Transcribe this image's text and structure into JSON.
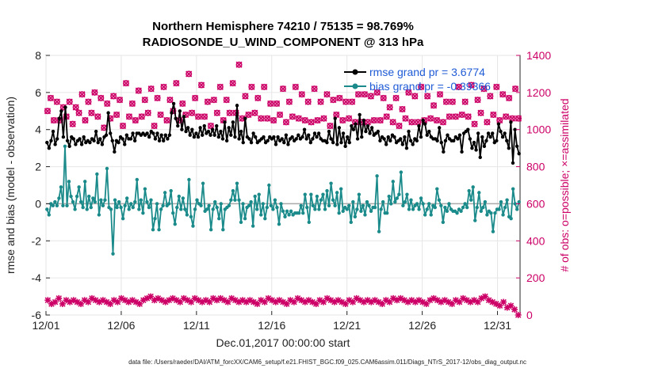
{
  "chart_data": {
    "type": "line",
    "title_line1": "Northern Hemisphere 74210 / 75135 = 98.769%",
    "title_line2": "RADIOSONDE_U_WIND_COMPONENT @ 313 hPa",
    "xlabel": "Dec.01,2017 00:00:00 start",
    "ylabel_left": "rmse and bias (model - observation)",
    "ylabel_right": "# of obs: o=possible; ×=assimilated",
    "footnote": "data file: /Users/raeder/DAI/ATM_forcXX/CAM6_setup/f.e21.FHIST_BGC.f09_025.CAM6assim.011/Diags_NTrS_2017-12/obs_diag_output.nc",
    "xlim": [
      0,
      31.5
    ],
    "xticks": [
      0,
      5,
      10,
      15,
      20,
      25,
      30
    ],
    "xtick_labels": [
      "12/01",
      "12/06",
      "12/11",
      "12/16",
      "12/21",
      "12/26",
      "12/31"
    ],
    "ylim_left": [
      -6,
      8
    ],
    "yticks_left": [
      "-6",
      "-4",
      "-2",
      "0",
      "2",
      "4",
      "6",
      "8"
    ],
    "ylim_right": [
      0,
      1400
    ],
    "yticks_right": [
      "0",
      "200",
      "400",
      "600",
      "800",
      "1000",
      "1200",
      "1400"
    ],
    "legend": [
      {
        "name": "rmse grand pr = 3.6774",
        "color": "#000000"
      },
      {
        "name": "bias grand pr = -0.39366",
        "color": "#1a8a8a"
      }
    ],
    "colors": {
      "rmse": "#000000",
      "bias": "#1a8a8a",
      "obs": "#cc0066",
      "zero_line": "#aaaaaa"
    },
    "series_rmse": [
      3.3,
      3.0,
      3.4,
      3.9,
      3.2,
      3.5,
      4.6,
      5.0,
      3.6,
      5.2,
      3.4,
      3.1,
      3.6,
      3.5,
      3.2,
      3.4,
      3.5,
      3.2,
      3.6,
      3.3,
      3.4,
      3.3,
      3.5,
      3.4,
      3.9,
      3.3,
      3.5,
      3.2,
      3.6,
      3.7,
      4.9,
      3.8,
      3.4,
      2.8,
      3.4,
      3.3,
      3.6,
      3.5,
      3.2,
      3.7,
      3.5,
      3.5,
      3.8,
      3.4,
      3.8,
      3.8,
      3.7,
      3.8,
      3.7,
      3.8,
      3.6,
      3.9,
      3.8,
      3.5,
      3.8,
      3.4,
      3.7,
      3.4,
      3.7,
      3.5,
      3.7,
      4.9,
      5.4,
      4.6,
      4.2,
      5.0,
      4.0,
      4.7,
      3.9,
      4.1,
      3.7,
      4.0,
      3.6,
      3.8,
      3.6,
      4.1,
      3.7,
      4.2,
      3.8,
      3.9,
      3.7,
      4.0,
      3.7,
      4.2,
      3.6,
      3.9,
      3.5,
      4.4,
      3.4,
      4.1,
      3.7,
      4.4,
      3.6,
      5.3,
      3.5,
      3.9,
      3.3,
      4.6,
      3.6,
      3.5,
      3.3,
      3.8,
      3.6,
      3.3,
      3.4,
      3.5,
      3.6,
      3.3,
      3.4,
      3.6,
      3.5,
      3.6,
      3.2,
      3.6,
      3.4,
      3.5,
      3.3,
      3.7,
      3.2,
      3.5,
      3.6,
      3.4,
      3.5,
      3.7,
      3.5,
      3.6,
      4.0,
      3.5,
      3.7,
      3.3,
      3.5,
      3.8,
      3.6,
      3.8,
      3.5,
      3.4,
      3.4,
      3.3,
      3.9,
      3.5,
      3.3,
      4.6,
      3.2,
      4.1,
      3.3,
      3.8,
      3.1,
      3.6,
      3.3,
      4.2,
      4.0,
      4.3,
      3.5,
      4.8,
      3.6,
      4.5,
      3.9,
      4.2,
      3.8,
      4.1,
      3.7,
      3.8,
      3.9,
      3.4,
      3.6,
      3.5,
      3.2,
      3.6,
      3.4,
      3.7,
      3.6,
      3.3,
      3.4,
      3.5,
      3.2,
      3.6,
      3.0,
      3.9,
      3.4,
      3.2,
      3.5,
      3.4,
      4.2,
      3.6,
      4.5,
      4.3,
      3.7,
      3.9,
      3.6,
      3.5,
      3.5,
      3.4,
      4.1,
      3.3,
      2.8,
      3.4,
      3.7,
      3.5,
      3.4,
      3.4,
      3.6,
      3.5,
      3.7,
      2.8,
      3.8,
      3.9,
      4.0,
      3.5,
      3.0,
      3.3,
      2.9,
      3.8,
      2.5,
      3.6,
      3.1,
      3.4,
      3.8,
      3.6,
      3.8,
      3.3,
      3.4,
      4.3,
      3.9,
      3.6,
      3.8,
      3.4,
      3.0,
      4.4,
      2.2,
      4.0,
      3.1,
      2.7
    ],
    "series_bias": [
      -0.3,
      -0.6,
      0.0,
      -0.1,
      0.1,
      -0.1,
      0.3,
      0.9,
      -0.1,
      3.1,
      -0.1,
      1.2,
      0.4,
      0.1,
      -0.3,
      0.4,
      0.9,
      0.1,
      -0.2,
      1.2,
      -0.3,
      0.4,
      -0.2,
      0.3,
      0.1,
      1.6,
      -0.6,
      0.2,
      -0.1,
      0.2,
      1.9,
      -0.2,
      -0.3,
      -2.7,
      0.2,
      -0.2,
      0.1,
      -0.2,
      -0.8,
      -0.1,
      0.3,
      -0.3,
      0.0,
      -0.2,
      0.1,
      1.3,
      -0.3,
      0.2,
      -0.5,
      0.8,
      0.1,
      -0.2,
      0.2,
      -1.4,
      -0.8,
      0.0,
      -1.4,
      -0.3,
      -0.1,
      0.6,
      -0.1,
      0.0,
      0.7,
      -0.5,
      -1.1,
      -0.2,
      0.4,
      -0.3,
      0.3,
      -0.3,
      -0.6,
      1.3,
      -0.7,
      -1.2,
      -0.3,
      0.2,
      0.0,
      -0.1,
      1.1,
      -0.4,
      -0.3,
      -0.1,
      -1.4,
      -0.3,
      0.1,
      -0.2,
      -0.8,
      0.0,
      -1.4,
      -0.3,
      -0.2,
      -0.1,
      0.2,
      0.7,
      0.2,
      1.1,
      0.2,
      -1.0,
      0.0,
      -0.8,
      -0.2,
      -0.1,
      0.1,
      -1.2,
      0.4,
      -0.3,
      0.5,
      -0.6,
      0.0,
      -0.8,
      -0.2,
      1.0,
      -0.1,
      -0.3,
      0.2,
      -0.2,
      -1.1,
      0.0,
      -0.4,
      -0.7,
      -0.4,
      -0.6,
      -0.4,
      -0.6,
      -0.5,
      -0.5,
      -0.5,
      -0.1,
      -0.5,
      0.5,
      -0.2,
      -1.0,
      0.5,
      -0.1,
      -0.3,
      0.4,
      -0.3,
      0.2,
      0.5,
      -0.3,
      0.7,
      -0.1,
      1.1,
      0.2,
      -0.1,
      0.6,
      -0.5,
      0.8,
      -0.4,
      -0.2,
      -0.3,
      -0.1,
      -1.0,
      0.1,
      -0.7,
      -0.3,
      0.5,
      -0.4,
      -0.1,
      -0.6,
      0.1,
      -0.1,
      -0.4,
      -0.2,
      -0.2,
      1.5,
      -1.5,
      -0.3,
      0.1,
      -0.5,
      -0.5,
      0.4,
      0.0,
      1.2,
      0.1,
      0.3,
      0.5,
      1.7,
      -0.1,
      0.1,
      0.5,
      -0.3,
      0.2,
      -0.3,
      -0.1,
      0.0,
      -0.3,
      0.3,
      0.0,
      -0.6,
      -0.3,
      0.0,
      -0.6,
      -0.1,
      -0.2,
      0.8,
      0.2,
      -0.1,
      -1.0,
      -0.2,
      -0.4,
      0.0,
      -0.3,
      -0.4,
      -0.4,
      -0.5,
      -0.3,
      -0.4,
      -0.2,
      0.0,
      -0.2,
      0.7,
      0.2,
      0.9,
      -0.9,
      -0.2,
      0.6,
      -0.4,
      -0.2,
      0.1,
      -0.6,
      -0.4,
      -0.5,
      -1.5,
      -0.5,
      -0.3,
      -0.3,
      0.1,
      -0.6,
      -0.2,
      0.2,
      -0.7,
      -0.8,
      0.8,
      0.0,
      -0.3,
      0.1
    ],
    "obs_possible": [
      1100,
      1170,
      1050,
      1150,
      1050,
      1120,
      1070,
      1150,
      1030,
      1120,
      1090,
      1190,
      1050,
      1150,
      1090,
      1200,
      1070,
      1170,
      1010,
      1140,
      1060,
      1180,
      1080,
      1160,
      1020,
      1250,
      1070,
      1140,
      1050,
      1210,
      1070,
      1160,
      1090,
      1220,
      1020,
      1170,
      1080,
      1230,
      1050,
      1160,
      1100,
      1250,
      1050,
      1140,
      1080,
      1300,
      1090,
      1170,
      1070,
      1240,
      1070,
      1150,
      1020,
      1160,
      1090,
      1230,
      1050,
      1160,
      1090,
      1250,
      1090,
      1350,
      1060,
      1180,
      1080,
      1230,
      1090,
      1170,
      1060,
      1230,
      1060,
      1140,
      1050,
      1140,
      1080,
      1220,
      1040,
      1150,
      1070,
      1230,
      1060,
      1190,
      1050,
      1150,
      1040,
      1220,
      1050,
      1150,
      1060,
      1190,
      1020,
      1160,
      1080,
      1170,
      1050,
      1150,
      1060,
      1150,
      1040,
      1190,
      1040,
      1190,
      1040,
      1180,
      1050,
      1200,
      1050,
      1170,
      1070,
      1120,
      1040,
      1170,
      1020,
      1110,
      1060,
      1200,
      1040,
      1180,
      1040,
      1230,
      1050,
      1180,
      1060,
      1130,
      1050,
      1190,
      1040,
      1150,
      1070,
      1150,
      1070,
      1230,
      1080,
      1150,
      1070,
      1240,
      1030,
      1160,
      1090,
      1220,
      1040,
      1180,
      1080,
      1230,
      1050,
      1190,
      1070,
      1170,
      1060,
      1220,
      1060
    ],
    "obs_assimilated": [
      80,
      60,
      70,
      90,
      60,
      80,
      70,
      80,
      70,
      60,
      80,
      70,
      90,
      80,
      70,
      80,
      70,
      60,
      80,
      70,
      90,
      80,
      70,
      80,
      70,
      60,
      80,
      90,
      100,
      80,
      90,
      80,
      70,
      80,
      90,
      80,
      70,
      90,
      80,
      70,
      90,
      80,
      70,
      80,
      70,
      90,
      80,
      90,
      80,
      70,
      90,
      80,
      70,
      80,
      70,
      80,
      70,
      60,
      80,
      70,
      90,
      80,
      70,
      80,
      70,
      60,
      80,
      70,
      90,
      80,
      70,
      80,
      70,
      60,
      80,
      70,
      90,
      80,
      70,
      80,
      70,
      60,
      80,
      70,
      90,
      80,
      70,
      80,
      70,
      80,
      70,
      60,
      80,
      70,
      90,
      80,
      90,
      80,
      70,
      80,
      70,
      80,
      70,
      60,
      80,
      90,
      80,
      70,
      80,
      70,
      60,
      80,
      70,
      90,
      80,
      70,
      80,
      70,
      90,
      100,
      80,
      70,
      60,
      50,
      70,
      40,
      50,
      30,
      0
    ]
  }
}
